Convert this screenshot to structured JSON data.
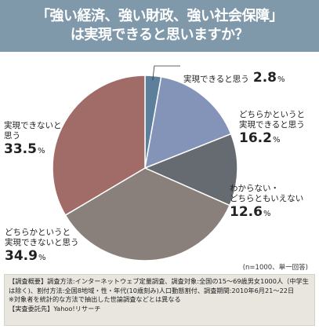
{
  "title": {
    "line1": "「強い経済、強い財政、強い社会保障」",
    "line2": "は実現できると思いますか？"
  },
  "chart_data": {
    "type": "pie",
    "title": "「強い経済、強い財政、強い社会保障」は実現できると思いますか？",
    "slices": [
      {
        "label": "実現できると思う",
        "value": 2.8,
        "color": "#5c7f9c"
      },
      {
        "label": "どちらかというと実現できると思う",
        "value": 16.2,
        "color": "#8494b8"
      },
      {
        "label": "わからない・どちらともいえない",
        "value": 12.6,
        "color": "#666b72"
      },
      {
        "label": "どちらかというと実現できないと思う",
        "value": 34.9,
        "color": "#8a807b"
      },
      {
        "label": "実現できないと思う",
        "value": 33.5,
        "color": "#a16b68"
      }
    ],
    "unit": "%",
    "start": "12 o'clock",
    "direction": "clockwise"
  },
  "labels": {
    "s0": {
      "line1": "実現できると思う",
      "value": "2.8",
      "unit": "%"
    },
    "s1": {
      "line1": "どちらかというと",
      "line2": "実現できると思う",
      "value": "16.2",
      "unit": "%"
    },
    "s2": {
      "line1": "わからない・",
      "line2": "どちらともいえない",
      "value": "12.6",
      "unit": "%"
    },
    "s3": {
      "line1": "どちらかというと",
      "line2": "実現できないと思う",
      "value": "34.9",
      "unit": "%"
    },
    "s4": {
      "line1": "実現できないと",
      "line2": "思う",
      "value": "33.5",
      "unit": "%"
    }
  },
  "note": "(n=1000、単一回答)",
  "footer": {
    "line1": "【調査概要】調査方法:インターネットウェブ定量調査、調査対象:全国の15〜69歳男女1000人（中学生は除く)、割付方法:全国8地域・性・年代(10歳刻み)人口動態割付、調査期間:2010年6月21〜22日",
    "line2": "※対象者を統計的な方法で抽出した世論調査などとは異なる",
    "line3": "【実査委託先】Yahoo!リサーチ"
  }
}
